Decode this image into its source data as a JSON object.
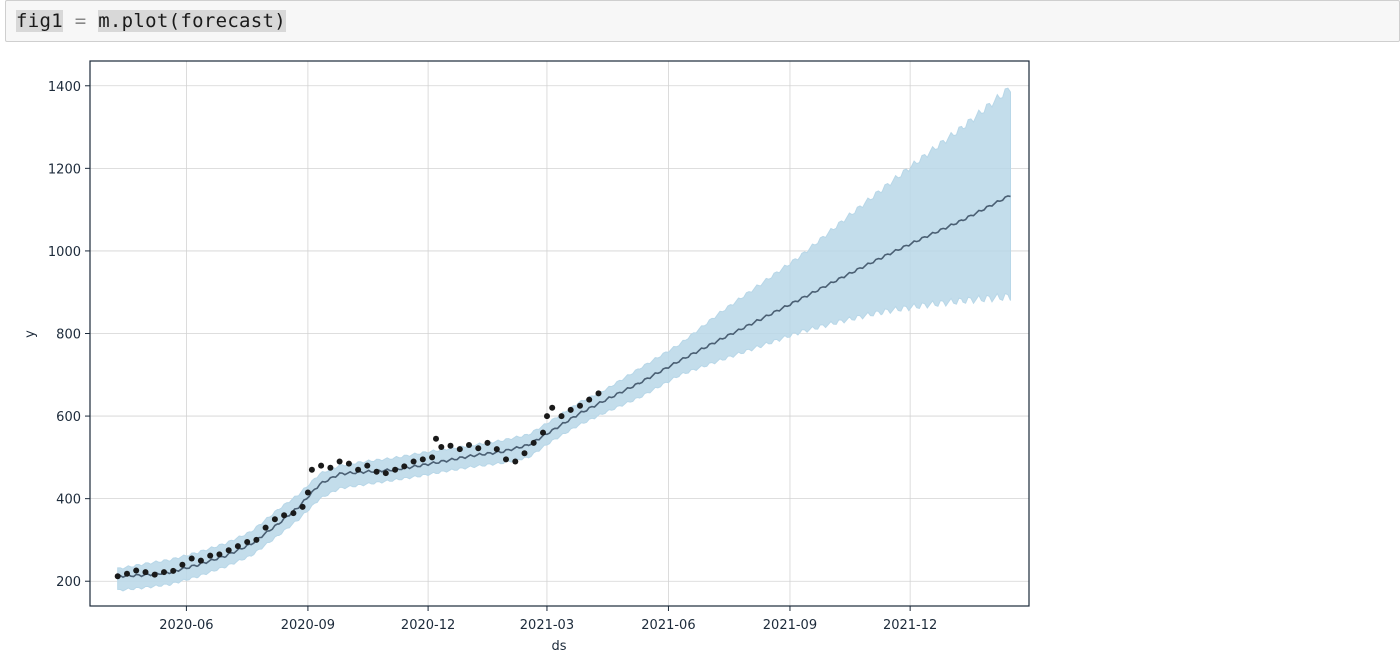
{
  "cell": {
    "code_prefix": "fig1",
    "code_op": " = ",
    "code_call": "m.plot(forecast)"
  },
  "colors": {
    "observed_points": "#1a1a1a",
    "forecast_line": "#4a5f73",
    "uncertainty_band": "#b8d7e8",
    "grid": "#d3d3d3",
    "axes": "#1c2a3a"
  },
  "chart_data": {
    "type": "line",
    "xlabel": "ds",
    "ylabel": "y",
    "x_tick_labels": [
      "2020-06",
      "2020-09",
      "2020-12",
      "2021-03",
      "2021-06",
      "2021-09",
      "2021-12"
    ],
    "y_tick_labels": [
      "200",
      "400",
      "600",
      "800",
      "1000",
      "1200",
      "1400"
    ],
    "x_ticks": [
      "2020-06-01",
      "2020-09-01",
      "2020-12-01",
      "2021-03-01",
      "2021-06-01",
      "2021-09-01",
      "2021-12-01"
    ],
    "y_ticks": [
      200,
      400,
      600,
      800,
      1000,
      1200,
      1400
    ],
    "xlim": [
      "2020-03-20",
      "2022-03-01"
    ],
    "ylim": [
      140,
      1460
    ],
    "grid": true,
    "series": [
      {
        "name": "",
        "kind": "forecast",
        "x": [
          "2020-04-10",
          "2020-05-01",
          "2020-05-20",
          "2020-06-10",
          "2020-07-01",
          "2020-07-20",
          "2020-08-10",
          "2020-08-25",
          "2020-09-10",
          "2020-09-25",
          "2020-10-15",
          "2020-11-05",
          "2020-11-25",
          "2020-12-15",
          "2021-01-05",
          "2021-01-25",
          "2021-02-15",
          "2021-03-05",
          "2021-03-25",
          "2021-04-15",
          "2021-05-10",
          "2021-06-10",
          "2021-07-10",
          "2021-08-10",
          "2021-09-10",
          "2021-10-10",
          "2021-11-10",
          "2021-12-10",
          "2022-01-10",
          "2022-02-15"
        ],
        "yhat": [
          212,
          215,
          222,
          240,
          262,
          290,
          340,
          380,
          435,
          460,
          465,
          470,
          480,
          492,
          505,
          513,
          530,
          565,
          605,
          640,
          680,
          735,
          785,
          835,
          885,
          935,
          985,
          1030,
          1075,
          1135
        ],
        "yhat_lower": [
          178,
          185,
          193,
          212,
          236,
          262,
          312,
          350,
          400,
          425,
          435,
          445,
          455,
          467,
          478,
          486,
          500,
          540,
          578,
          610,
          645,
          700,
          735,
          770,
          805,
          830,
          853,
          868,
          880,
          890
        ],
        "yhat_upper": [
          230,
          242,
          252,
          270,
          292,
          320,
          375,
          410,
          460,
          480,
          490,
          498,
          510,
          520,
          530,
          540,
          555,
          590,
          632,
          665,
          715,
          775,
          850,
          920,
          990,
          1070,
          1150,
          1225,
          1300,
          1395
        ]
      },
      {
        "name": "",
        "kind": "observed",
        "x": [
          "2020-04-10",
          "2020-04-17",
          "2020-04-24",
          "2020-05-01",
          "2020-05-08",
          "2020-05-15",
          "2020-05-22",
          "2020-05-29",
          "2020-06-05",
          "2020-06-12",
          "2020-06-19",
          "2020-06-26",
          "2020-07-03",
          "2020-07-10",
          "2020-07-17",
          "2020-07-24",
          "2020-07-31",
          "2020-08-07",
          "2020-08-14",
          "2020-08-21",
          "2020-08-28",
          "2020-09-01",
          "2020-09-04",
          "2020-09-11",
          "2020-09-18",
          "2020-09-25",
          "2020-10-02",
          "2020-10-09",
          "2020-10-16",
          "2020-10-23",
          "2020-10-30",
          "2020-11-06",
          "2020-11-13",
          "2020-11-20",
          "2020-11-27",
          "2020-12-04",
          "2020-12-07",
          "2020-12-11",
          "2020-12-18",
          "2020-12-25",
          "2021-01-01",
          "2021-01-08",
          "2021-01-15",
          "2021-01-22",
          "2021-01-29",
          "2021-02-05",
          "2021-02-12",
          "2021-02-19",
          "2021-02-26",
          "2021-03-01",
          "2021-03-05",
          "2021-03-12",
          "2021-03-19",
          "2021-03-26",
          "2021-04-02",
          "2021-04-09"
        ],
        "y": [
          212,
          218,
          226,
          222,
          216,
          222,
          225,
          240,
          255,
          250,
          262,
          265,
          275,
          285,
          295,
          300,
          330,
          350,
          360,
          365,
          380,
          415,
          470,
          480,
          475,
          490,
          485,
          470,
          480,
          465,
          462,
          470,
          478,
          490,
          495,
          500,
          545,
          525,
          528,
          520,
          530,
          522,
          535,
          520,
          495,
          490,
          510,
          535,
          560,
          600,
          620,
          600,
          615,
          625,
          640,
          655
        ]
      }
    ]
  }
}
